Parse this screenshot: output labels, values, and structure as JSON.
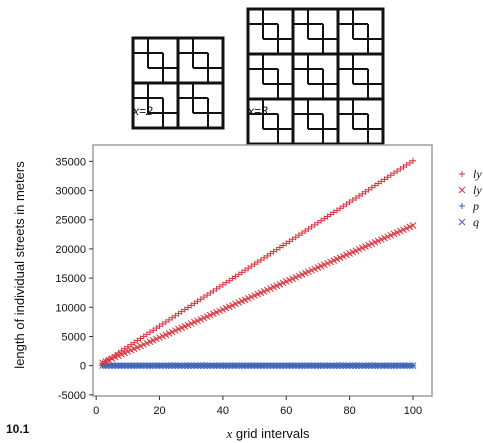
{
  "figure_label": "10.1",
  "illustrations": [
    {
      "caption": "x=2",
      "grid": 2
    },
    {
      "caption": "x=3",
      "grid": 3
    }
  ],
  "chart_data": {
    "type": "scatter",
    "xlabel_var": "x",
    "xlabel_rest": " grid intervals",
    "ylabel": "length of individual streets in meters",
    "xlim": [
      -1,
      106
    ],
    "ylim": [
      -5200,
      37800
    ],
    "x_ticks": [
      0,
      20,
      40,
      60,
      80,
      100
    ],
    "y_ticks": [
      -5000,
      0,
      5000,
      10000,
      15000,
      20000,
      25000,
      30000,
      35000
    ],
    "x_range": [
      2,
      100
    ],
    "grid": false,
    "legend_position": "right",
    "series": [
      {
        "name": "ly",
        "marker": "+",
        "color": "#e0303a",
        "slope": 354,
        "intercept": -300
      },
      {
        "name": "ly",
        "marker": "x",
        "color": "#e0303a",
        "slope": 240,
        "intercept": 10
      },
      {
        "name": "p",
        "marker": "+",
        "color": "#3a62b8",
        "slope": 0,
        "intercept": 0
      },
      {
        "name": "q",
        "marker": "x",
        "color": "#3a62b8",
        "slope": 0,
        "intercept": 0
      }
    ]
  }
}
